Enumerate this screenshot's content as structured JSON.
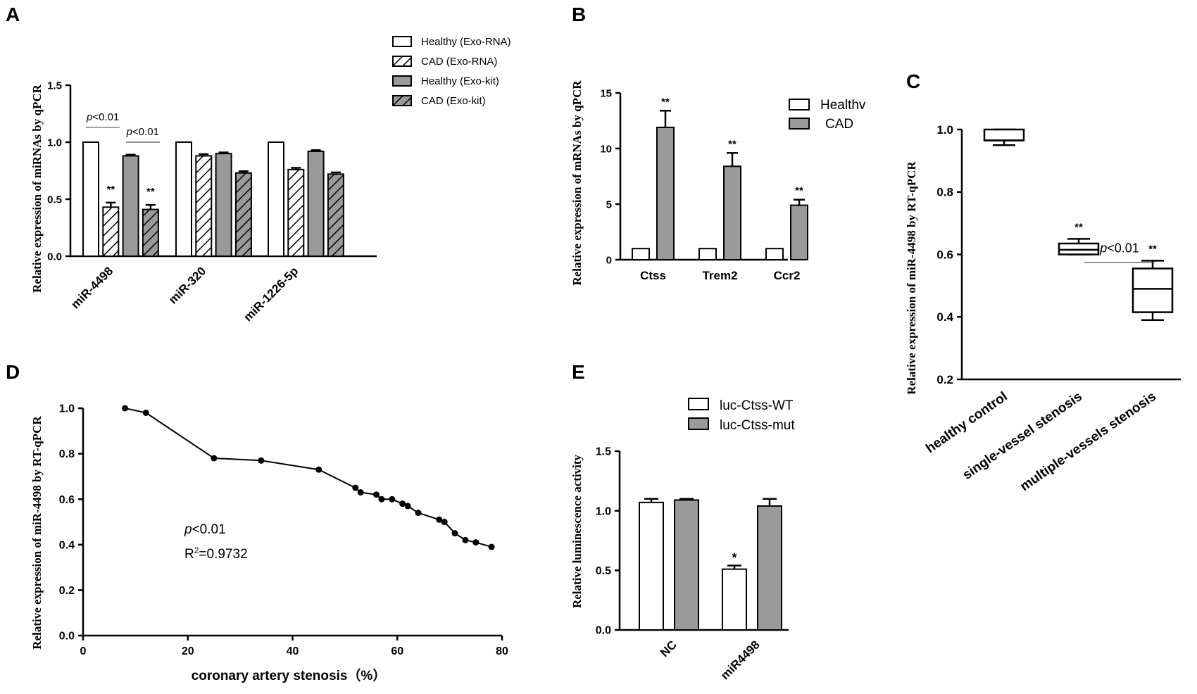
{
  "colors": {
    "white": "#ffffff",
    "gray": "#9a9a9a",
    "black": "#000000"
  },
  "chart_data": [
    {
      "panel": "A",
      "type": "bar",
      "ylabel": "Relative expression of miRNAs by qPCR",
      "ylim": [
        0,
        1.5
      ],
      "yticks": [
        "0.0",
        "0.5",
        "1.0",
        "1.5"
      ],
      "categories": [
        "miR-4498",
        "miR-320",
        "miR-1226-5p"
      ],
      "series": [
        {
          "name": "Healthy (Exo-RNA)",
          "fill": "white",
          "values": [
            1.0,
            1.0,
            1.0
          ],
          "errors": [
            0,
            0,
            0
          ]
        },
        {
          "name": "CAD (Exo-RNA)",
          "fill": "hatch-white",
          "values": [
            0.43,
            0.88,
            0.76
          ],
          "errors": [
            0.04,
            0.015,
            0.015
          ]
        },
        {
          "name": "Healthy (Exo-kit)",
          "fill": "gray",
          "values": [
            0.88,
            0.9,
            0.92
          ],
          "errors": [
            0.01,
            0.01,
            0.01
          ]
        },
        {
          "name": "CAD (Exo-kit)",
          "fill": "hatch-gray",
          "values": [
            0.41,
            0.73,
            0.72
          ],
          "errors": [
            0.04,
            0.015,
            0.015
          ]
        }
      ],
      "significance": [
        {
          "category": 0,
          "series": 1,
          "label": "**"
        },
        {
          "category": 0,
          "series": 3,
          "label": "**"
        }
      ],
      "brackets": [
        {
          "from_series": 0,
          "to_series": 1,
          "category": 0,
          "level": 1.13,
          "p_italic": "p",
          "p_rest": "<0.01"
        },
        {
          "from_series": 2,
          "to_series": 3,
          "category": 0,
          "level": 1.0,
          "p_italic": "p",
          "p_rest": "<0.01"
        }
      ]
    },
    {
      "panel": "B",
      "type": "bar",
      "ylabel": "Relative expression of mRNAs by qPCR",
      "ylim": [
        0,
        15
      ],
      "yticks": [
        "0",
        "5",
        "10",
        "15"
      ],
      "categories": [
        "Ctss",
        "Trem2",
        "Ccr2"
      ],
      "series": [
        {
          "name": "Healthv",
          "fill": "white",
          "values": [
            1.0,
            1.0,
            1.0
          ],
          "errors": [
            0,
            0,
            0
          ]
        },
        {
          "name": "CAD",
          "fill": "gray",
          "values": [
            11.9,
            8.4,
            4.9
          ],
          "errors": [
            1.5,
            1.2,
            0.5
          ]
        }
      ],
      "significance": [
        {
          "category": 0,
          "series": 1,
          "label": "**"
        },
        {
          "category": 1,
          "series": 1,
          "label": "**"
        },
        {
          "category": 2,
          "series": 1,
          "label": "**"
        }
      ]
    },
    {
      "panel": "C",
      "type": "box",
      "ylabel": "Relative expression of miR-4498 by RT-qPCR",
      "ylim": [
        0.2,
        1.0
      ],
      "yticks": [
        "0.2",
        "0.4",
        "0.6",
        "0.8",
        "1.0"
      ],
      "categories": [
        "healthy control",
        "single-vessel stenosis",
        "multiple-vessels stenosis"
      ],
      "boxes": [
        {
          "min": 0.95,
          "q1": 0.965,
          "median": 0.965,
          "q3": 1.0,
          "max": 1.0
        },
        {
          "min": 0.6,
          "q1": 0.6,
          "median": 0.615,
          "q3": 0.635,
          "max": 0.65
        },
        {
          "min": 0.39,
          "q1": 0.415,
          "median": 0.49,
          "q3": 0.555,
          "max": 0.58
        }
      ],
      "significance": [
        {
          "category": 1,
          "label": "**"
        },
        {
          "category": 2,
          "label": "**"
        }
      ],
      "bracket": {
        "from": 1,
        "to": 2,
        "level": 0.575,
        "p_italic": "p",
        "p_rest": "<0.01"
      }
    },
    {
      "panel": "D",
      "type": "line",
      "xlabel": "coronary  artery stenosis（%）",
      "ylabel": "Relative expression of miR-4498 by RT-qPCR",
      "xlim": [
        0,
        80
      ],
      "ylim": [
        0,
        1.0
      ],
      "xticks": [
        "0",
        "20",
        "40",
        "60",
        "80"
      ],
      "yticks": [
        "0.0",
        "0.2",
        "0.4",
        "0.6",
        "0.8",
        "1.0"
      ],
      "x": [
        8,
        12,
        25,
        34,
        45,
        52,
        53,
        56,
        57,
        59,
        61,
        62,
        64,
        68,
        69,
        71,
        73,
        75,
        78
      ],
      "y": [
        1.0,
        0.98,
        0.78,
        0.77,
        0.73,
        0.65,
        0.63,
        0.62,
        0.6,
        0.6,
        0.58,
        0.57,
        0.54,
        0.51,
        0.5,
        0.45,
        0.42,
        0.41,
        0.39
      ],
      "annotation_p_italic": "p",
      "annotation_p_rest": "<0.01",
      "annotation_r2_a": "R",
      "annotation_r2_sup": "2",
      "annotation_r2_b": "=0.9732"
    },
    {
      "panel": "E",
      "type": "bar",
      "ylabel": "Relative luminescence activity",
      "ylim": [
        0,
        1.5
      ],
      "yticks": [
        "0.0",
        "0.5",
        "1.0",
        "1.5"
      ],
      "categories": [
        "NC",
        "miR4498"
      ],
      "series": [
        {
          "name": "luc-Ctss-WT",
          "fill": "white",
          "values": [
            1.07,
            0.51
          ],
          "errors": [
            0.03,
            0.03
          ]
        },
        {
          "name": "luc-Ctss-mut",
          "fill": "gray",
          "values": [
            1.09,
            1.04
          ],
          "errors": [
            0.01,
            0.06
          ]
        }
      ],
      "significance": [
        {
          "category": 1,
          "series": 0,
          "label": "*"
        }
      ]
    }
  ]
}
